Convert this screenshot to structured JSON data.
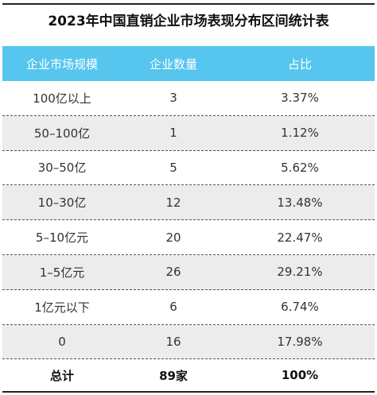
{
  "title": "2023年中国直销企业市场表现分布区间统计表",
  "headers": [
    "企业市场规模",
    "企业数量",
    "占比"
  ],
  "rows": [
    {
      "scale": "100亿以上",
      "count": "3",
      "share": "3.37%"
    },
    {
      "scale": "50–100亿",
      "count": "1",
      "share": "1.12%"
    },
    {
      "scale": "30–50亿",
      "count": "5",
      "share": "5.62%"
    },
    {
      "scale": "10–30亿",
      "count": "12",
      "share": "13.48%"
    },
    {
      "scale": "5–10亿元",
      "count": "20",
      "share": "22.47%"
    },
    {
      "scale": "1–5亿元",
      "count": "26",
      "share": "29.21%"
    },
    {
      "scale": "1亿元以下",
      "count": "6",
      "share": "6.74%"
    },
    {
      "scale": "0",
      "count": "16",
      "share": "17.98%"
    }
  ],
  "total": {
    "label": "总计",
    "count": "89家",
    "share": "100%"
  },
  "colors": {
    "header_bg": "#57c6ee",
    "stripe_bg": "#ececec"
  }
}
